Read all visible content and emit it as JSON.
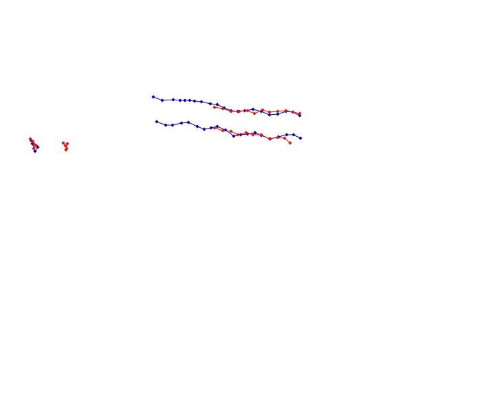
{
  "chart_data": {
    "type": "line",
    "title": "",
    "xlabel": "",
    "ylabel": "",
    "grid": false,
    "axes_visible": false,
    "colors": {
      "blue": "#0000b0",
      "red": "#e81010"
    },
    "series": [
      {
        "color": "blue",
        "marker": "diamond",
        "points": [
          [
            223,
            141
          ],
          [
            236,
            146
          ],
          [
            252,
            145
          ],
          [
            262,
            146
          ],
          [
            269,
            146
          ],
          [
            276,
            146
          ],
          [
            283,
            147
          ],
          [
            293,
            148
          ],
          [
            306,
            151
          ],
          [
            316,
            152
          ],
          [
            326,
            157
          ],
          [
            336,
            161
          ],
          [
            346,
            162
          ],
          [
            356,
            161
          ],
          [
            368,
            159
          ],
          [
            380,
            162
          ],
          [
            392,
            167
          ],
          [
            404,
            166
          ],
          [
            416,
            162
          ],
          [
            426,
            163
          ],
          [
            436,
            168
          ]
        ]
      },
      {
        "color": "red",
        "marker": "diamond",
        "points": [
          [
            312,
            156
          ],
          [
            324,
            158
          ],
          [
            336,
            162
          ],
          [
            348,
            162
          ],
          [
            360,
            161
          ],
          [
            370,
            165
          ],
          [
            382,
            160
          ],
          [
            392,
            163
          ],
          [
            404,
            162
          ],
          [
            416,
            161
          ],
          [
            426,
            163
          ],
          [
            436,
            165
          ]
        ]
      },
      {
        "color": "blue",
        "marker": "diamond",
        "points": [
          [
            228,
            177
          ],
          [
            241,
            182
          ],
          [
            251,
            182
          ],
          [
            264,
            179
          ],
          [
            274,
            178
          ],
          [
            287,
            184
          ],
          [
            297,
            188
          ],
          [
            307,
            186
          ],
          [
            316,
            184
          ],
          [
            328,
            189
          ],
          [
            340,
            198
          ],
          [
            350,
            196
          ],
          [
            360,
            195
          ],
          [
            371,
            193
          ],
          [
            380,
            197
          ],
          [
            393,
            202
          ],
          [
            405,
            199
          ],
          [
            417,
            196
          ],
          [
            427,
            196
          ],
          [
            437,
            201
          ]
        ]
      },
      {
        "color": "red",
        "marker": "diamond",
        "points": [
          [
            312,
            186
          ],
          [
            324,
            190
          ],
          [
            336,
            191
          ],
          [
            346,
            196
          ],
          [
            358,
            193
          ],
          [
            368,
            196
          ],
          [
            380,
            196
          ],
          [
            392,
            202
          ],
          [
            404,
            200
          ],
          [
            414,
            201
          ],
          [
            422,
            208
          ]
        ]
      },
      {
        "color": "blue",
        "marker": "diamond",
        "points": [
          [
            45,
            204
          ],
          [
            47,
            209
          ],
          [
            51,
            220
          ],
          [
            55,
            214
          ]
        ]
      },
      {
        "color": "red",
        "marker": "diamond",
        "points": [
          [
            44,
            202
          ],
          [
            48,
            206
          ],
          [
            50,
            210
          ],
          [
            49,
            216
          ],
          [
            53,
            212
          ]
        ]
      },
      {
        "color": "red",
        "marker": "diamond",
        "points": [
          [
            92,
            208
          ],
          [
            95,
            212
          ],
          [
            97,
            216
          ],
          [
            96,
            218
          ],
          [
            98,
            209
          ]
        ]
      }
    ]
  }
}
